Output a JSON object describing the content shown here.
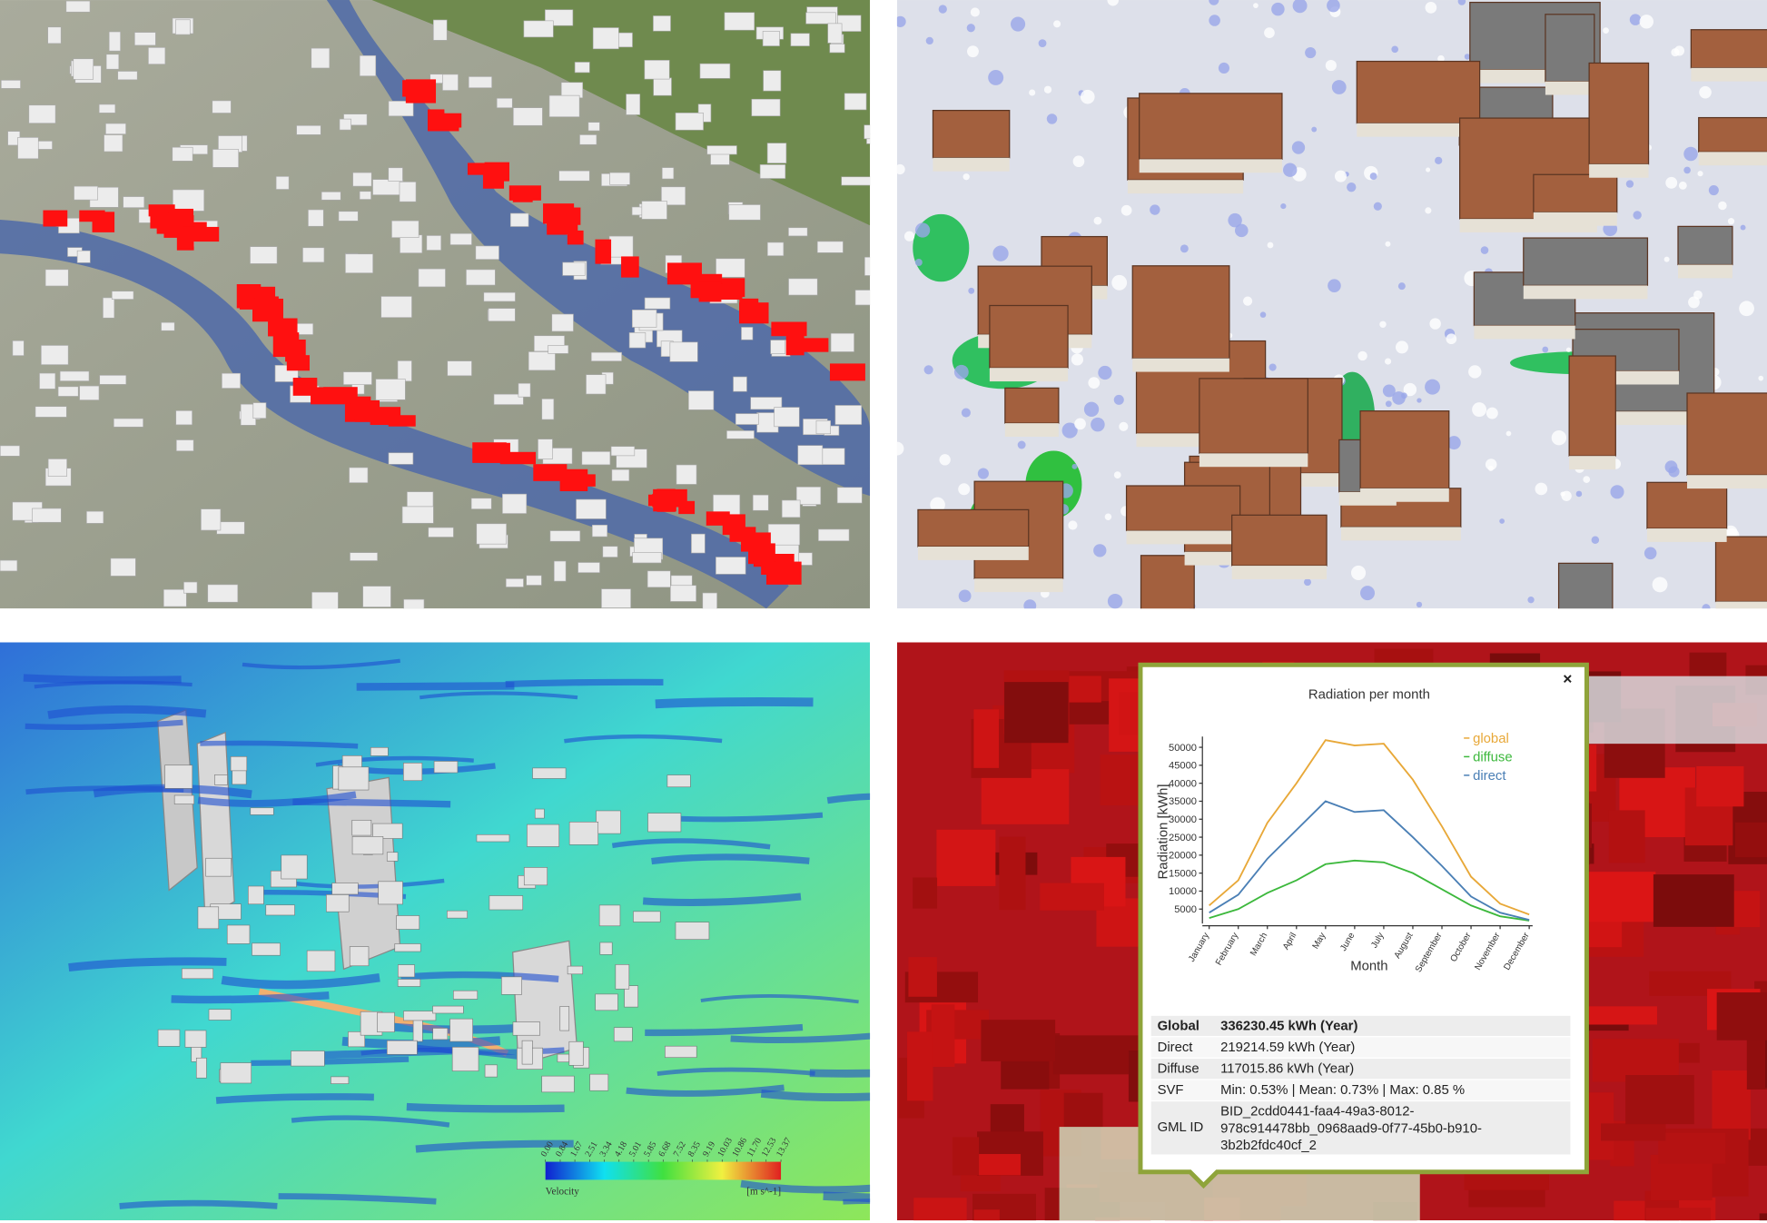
{
  "velocity_legend": {
    "label": "Velocity",
    "unit": "[m s^-1]",
    "clim": [
      0,
      13.37
    ],
    "ticks": [
      {
        "value": 0,
        "label": "0.00"
      },
      0.84,
      1.67,
      2.51,
      3.34,
      4.18,
      5.01,
      5.85,
      6.68,
      7.52,
      8.35,
      9.19,
      10.03,
      10.86,
      {
        "value": 11.7,
        "label": "11.70"
      },
      12.53,
      13.37
    ]
  },
  "popup": {
    "close": "×",
    "chart": {
      "type": "line",
      "title": "Radiation per month",
      "y_label": "Radiation [kWh]",
      "x_label": "Month",
      "categories": [
        "January",
        "February",
        "March",
        "April",
        "May",
        "June",
        "July",
        "August",
        "September",
        "October",
        "November",
        "December"
      ],
      "series": [
        {
          "name": "global",
          "color": "#e8a838",
          "values": [
            6000,
            13000,
            29000,
            40000,
            52000,
            50500,
            51000,
            41000,
            28000,
            14000,
            6500,
            3500
          ]
        },
        {
          "name": "diffuse",
          "color": "#3cb83c",
          "values": [
            2500,
            5000,
            9500,
            13000,
            17500,
            18500,
            18000,
            15000,
            10500,
            6000,
            3000,
            1800
          ]
        },
        {
          "name": "direct",
          "color": "#4a7fb5",
          "values": [
            4000,
            9000,
            19000,
            27000,
            35000,
            32000,
            32500,
            25000,
            17000,
            8500,
            4000,
            2000
          ]
        }
      ],
      "ylim": [
        1000,
        53000
      ],
      "yticks": [
        5000,
        10000,
        15000,
        20000,
        25000,
        30000,
        35000,
        40000,
        45000,
        50000
      ]
    },
    "table": {
      "rows": [
        {
          "label": "Global",
          "value": [
            "336230.45 kWh (Year)"
          ]
        },
        {
          "label": "Direct",
          "value": [
            "219214.59 kWh (Year)"
          ]
        },
        {
          "label": "Diffuse",
          "value": [
            "117015.86 kWh (Year)"
          ]
        },
        {
          "label": "SVF",
          "value": [
            "Min: 0.53% | Mean: 0.73% | Max: 0.85 %"
          ]
        },
        {
          "label": "GML ID",
          "value": [
            "BID_2cdd0441-faa4-49a3-8012-",
            "978c914478bb_0968aad9-0f77-45b0-b910-",
            "3b2b2fdc40cf_2"
          ]
        }
      ]
    }
  }
}
